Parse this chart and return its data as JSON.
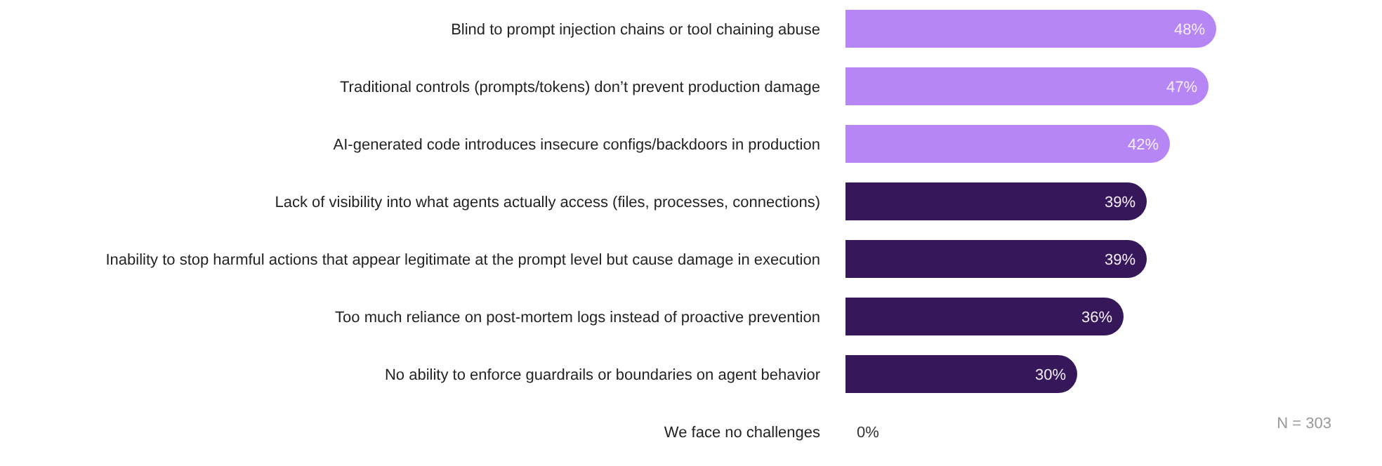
{
  "chart_data": {
    "type": "bar",
    "orientation": "horizontal",
    "categories": [
      "Blind to prompt injection chains or tool chaining abuse",
      "Traditional controls (prompts/tokens) don’t prevent production damage",
      "AI-generated code introduces insecure configs/backdoors in production",
      "Lack of visibility into what agents actually access (files, processes, connections)",
      "Inability to stop harmful actions that appear legitimate at the prompt level but cause damage in execution",
      "Too much reliance on post-mortem logs instead of proactive prevention",
      "No ability to enforce guardrails or boundaries on agent behavior",
      "We face no challenges"
    ],
    "values": [
      48,
      47,
      42,
      39,
      39,
      36,
      30,
      0
    ],
    "colors": [
      "#b586f4",
      "#b586f4",
      "#b586f4",
      "#35175a",
      "#35175a",
      "#35175a",
      "#35175a",
      "#35175a"
    ],
    "value_labels": [
      "48%",
      "47%",
      "42%",
      "39%",
      "39%",
      "36%",
      "30%",
      "0%"
    ],
    "annotations": [
      "N = 303"
    ],
    "grid": false,
    "legend": false
  }
}
